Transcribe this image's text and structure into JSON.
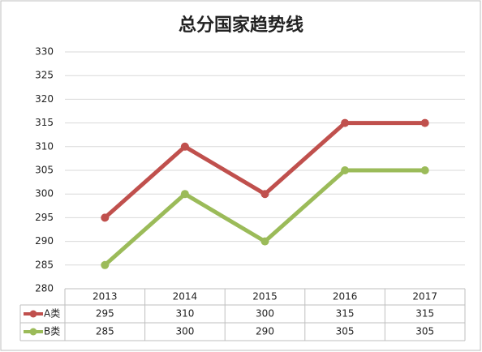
{
  "chart_data": {
    "type": "line",
    "title": "总分国家趋势线",
    "categories": [
      "2013",
      "2014",
      "2015",
      "2016",
      "2017"
    ],
    "series": [
      {
        "name": "A类",
        "color": "#c0504d",
        "values": [
          295,
          310,
          300,
          315,
          315
        ]
      },
      {
        "name": "B类",
        "color": "#9bbb59",
        "values": [
          285,
          300,
          290,
          305,
          305
        ]
      }
    ],
    "ylim": [
      280,
      330
    ],
    "yticks": [
      280,
      285,
      290,
      295,
      300,
      305,
      310,
      315,
      320,
      325,
      330
    ],
    "grid": true
  }
}
